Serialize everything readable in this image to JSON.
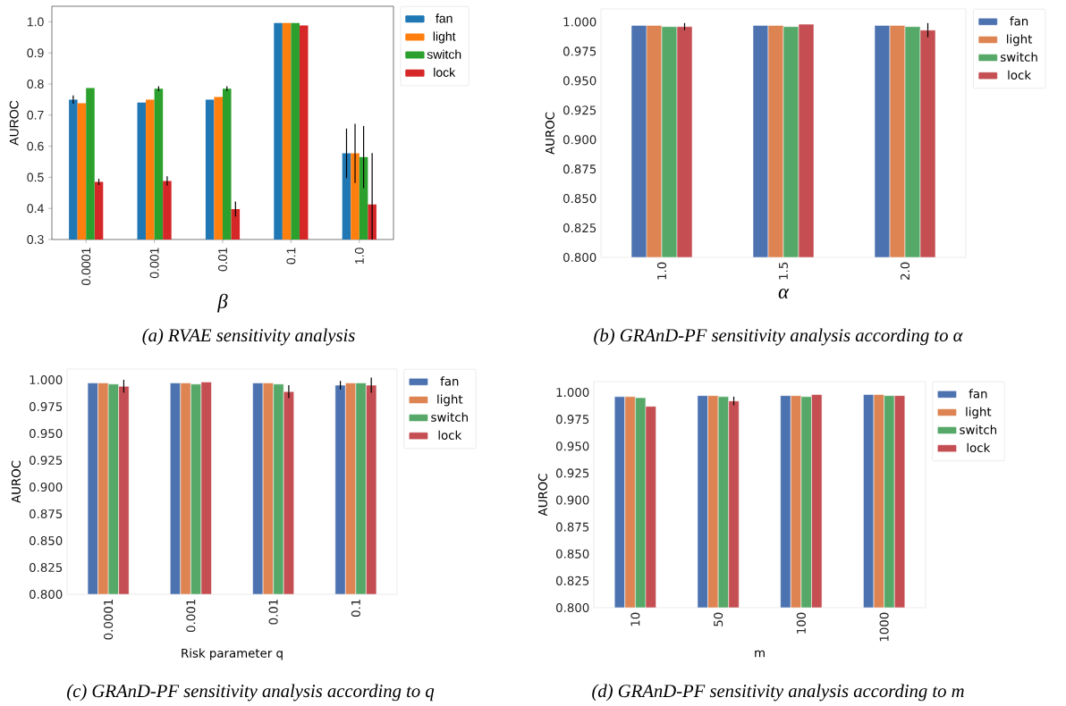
{
  "chart_data": [
    {
      "type": "bar",
      "categories": [
        "0.0001",
        "0.001",
        "0.01",
        "0.1",
        "1.0"
      ],
      "xlabel": "β",
      "ylabel": "AUROC",
      "ylim": [
        0.3,
        1.05
      ],
      "yticks": [
        {
          "value": 0.3,
          "label": "0.3"
        },
        {
          "value": 0.4,
          "label": "0.4"
        },
        {
          "value": 0.5,
          "label": "0.5"
        },
        {
          "value": 0.6,
          "label": "0.6"
        },
        {
          "value": 0.7,
          "label": "0.7"
        },
        {
          "value": 0.8,
          "label": "0.8"
        },
        {
          "value": 0.9,
          "label": "0.9"
        },
        {
          "value": 1.0,
          "label": "1.0"
        }
      ],
      "legend": "top right",
      "annotations": [
        "(a) RVAE sensitivity analysis"
      ],
      "series": [
        {
          "name": "fan",
          "color": "#1f77b4",
          "values": [
            0.75,
            0.74,
            0.75,
            0.997,
            0.577
          ],
          "errors": [
            0.013,
            null,
            null,
            null,
            0.08
          ]
        },
        {
          "name": "light",
          "color": "#ff7f0e",
          "values": [
            0.738,
            0.75,
            0.758,
            0.997,
            0.577
          ],
          "errors": [
            null,
            null,
            null,
            null,
            0.095
          ]
        },
        {
          "name": "switch",
          "color": "#2ca02c",
          "values": [
            0.787,
            0.785,
            0.785,
            0.997,
            0.565
          ],
          "errors": [
            null,
            0.008,
            0.008,
            null,
            0.1
          ]
        },
        {
          "name": "lock",
          "color": "#d62728",
          "values": [
            0.485,
            0.488,
            0.398,
            0.988,
            0.413
          ],
          "errors": [
            0.01,
            0.015,
            0.024,
            null,
            [
              0.3,
              0.578
            ]
          ]
        }
      ]
    },
    {
      "type": "bar",
      "categories": [
        "1.0",
        "1.5",
        "2.0"
      ],
      "xlabel": "α",
      "ylabel": "AUROC",
      "ylim": [
        0.8,
        1.011
      ],
      "yticks": [
        {
          "value": 0.8,
          "label": "0.800"
        },
        {
          "value": 0.825,
          "label": "0.825"
        },
        {
          "value": 0.85,
          "label": "0.850"
        },
        {
          "value": 0.875,
          "label": "0.875"
        },
        {
          "value": 0.9,
          "label": "0.900"
        },
        {
          "value": 0.925,
          "label": "0.925"
        },
        {
          "value": 0.95,
          "label": "0.950"
        },
        {
          "value": 0.975,
          "label": "0.975"
        },
        {
          "value": 1.0,
          "label": "1.000"
        }
      ],
      "legend": "top right",
      "annotations": [
        "(b) GRAnD-PF sensitivity analysis according to α"
      ],
      "series": [
        {
          "name": "fan",
          "color": "#4c72b0",
          "values": [
            0.997,
            0.997,
            0.997
          ]
        },
        {
          "name": "light",
          "color": "#dd8452",
          "values": [
            0.997,
            0.997,
            0.997
          ]
        },
        {
          "name": "switch",
          "color": "#55a868",
          "values": [
            0.996,
            0.996,
            0.996
          ]
        },
        {
          "name": "lock",
          "color": "#c44e52",
          "values": [
            0.996,
            0.998,
            0.993
          ],
          "errors": [
            0.003,
            null,
            0.006
          ]
        }
      ]
    },
    {
      "type": "bar",
      "categories": [
        "0.0001",
        "0.001",
        "0.01",
        "0.1"
      ],
      "xlabel": "Risk parameter q",
      "ylabel": "AUROC",
      "ylim": [
        0.8,
        1.01
      ],
      "yticks": [
        {
          "value": 0.8,
          "label": "0.800"
        },
        {
          "value": 0.825,
          "label": "0.825"
        },
        {
          "value": 0.85,
          "label": "0.850"
        },
        {
          "value": 0.875,
          "label": "0.875"
        },
        {
          "value": 0.9,
          "label": "0.900"
        },
        {
          "value": 0.925,
          "label": "0.925"
        },
        {
          "value": 0.95,
          "label": "0.950"
        },
        {
          "value": 0.975,
          "label": "0.975"
        },
        {
          "value": 1.0,
          "label": "1.000"
        }
      ],
      "legend": "top right",
      "annotations": [
        "(c) GRAnD-PF sensitivity analysis according to q"
      ],
      "series": [
        {
          "name": "fan",
          "color": "#4c72b0",
          "values": [
            0.997,
            0.997,
            0.997,
            0.995
          ],
          "errors": [
            null,
            null,
            null,
            0.004
          ]
        },
        {
          "name": "light",
          "color": "#dd8452",
          "values": [
            0.997,
            0.997,
            0.997,
            0.997
          ]
        },
        {
          "name": "switch",
          "color": "#55a868",
          "values": [
            0.996,
            0.996,
            0.996,
            0.997
          ]
        },
        {
          "name": "lock",
          "color": "#c44e52",
          "values": [
            0.994,
            0.998,
            0.989,
            0.995
          ],
          "errors": [
            0.006,
            null,
            0.006,
            0.007
          ]
        }
      ]
    },
    {
      "type": "bar",
      "categories": [
        "10",
        "50",
        "100",
        "1000"
      ],
      "xlabel": "m",
      "ylabel": "AUROC",
      "ylim": [
        0.8,
        1.01
      ],
      "yticks": [
        {
          "value": 0.8,
          "label": "0.800"
        },
        {
          "value": 0.825,
          "label": "0.825"
        },
        {
          "value": 0.85,
          "label": "0.850"
        },
        {
          "value": 0.875,
          "label": "0.875"
        },
        {
          "value": 0.9,
          "label": "0.900"
        },
        {
          "value": 0.925,
          "label": "0.925"
        },
        {
          "value": 0.95,
          "label": "0.950"
        },
        {
          "value": 0.975,
          "label": "0.975"
        },
        {
          "value": 1.0,
          "label": "1.000"
        }
      ],
      "legend": "top right",
      "annotations": [
        "(d) GRAnD-PF sensitivity analysis according to m"
      ],
      "series": [
        {
          "name": "fan",
          "color": "#4c72b0",
          "values": [
            0.996,
            0.997,
            0.997,
            0.998
          ]
        },
        {
          "name": "light",
          "color": "#dd8452",
          "values": [
            0.996,
            0.997,
            0.997,
            0.998
          ]
        },
        {
          "name": "switch",
          "color": "#55a868",
          "values": [
            0.995,
            0.996,
            0.996,
            0.997
          ]
        },
        {
          "name": "lock",
          "color": "#c44e52",
          "values": [
            0.987,
            0.992,
            0.998,
            0.997
          ],
          "errors": [
            null,
            0.004,
            null,
            null
          ]
        }
      ]
    }
  ]
}
